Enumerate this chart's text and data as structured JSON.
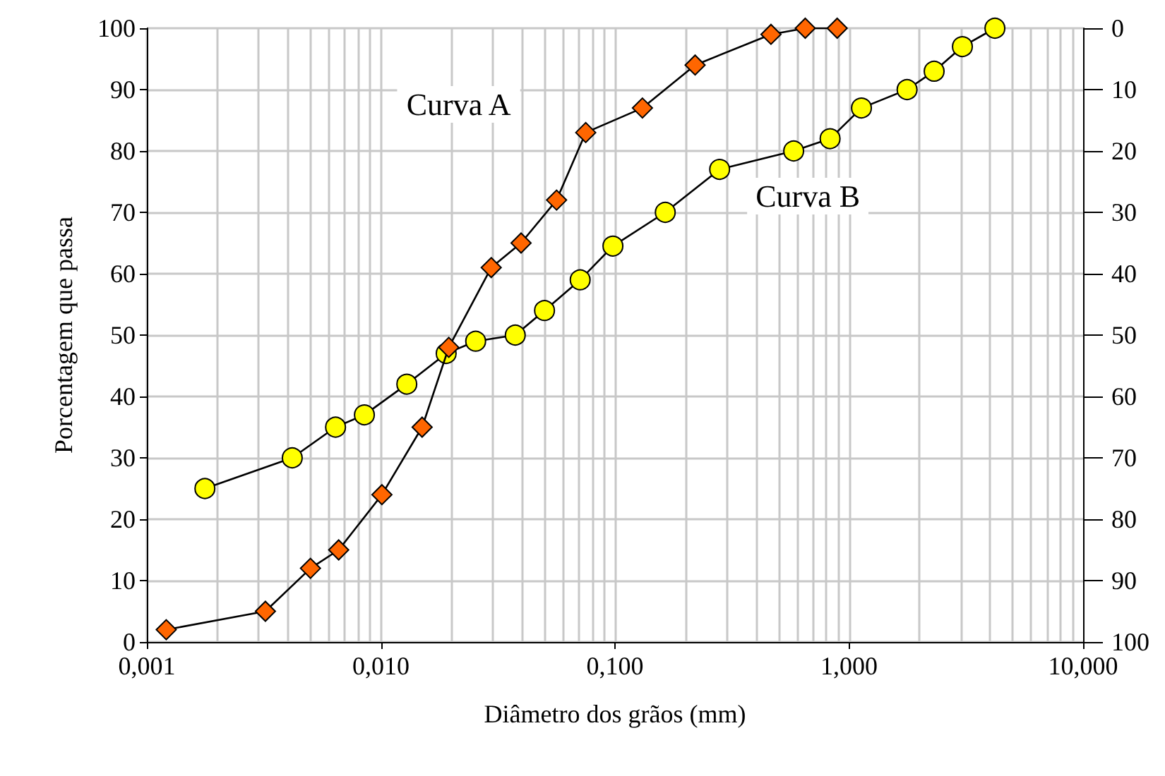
{
  "chart_data": {
    "type": "line",
    "xlabel": "Diâmetro dos grãos (mm)",
    "ylabel": "Porcentagem que passa",
    "log": "x",
    "grid": true,
    "line_style": "solid",
    "xlim": [
      0.001,
      10
    ],
    "xticks": [
      {
        "value": 0.001,
        "label": "0,001"
      },
      {
        "value": 0.01,
        "label": "0,010"
      },
      {
        "value": 0.1,
        "label": "0,100"
      },
      {
        "value": 1,
        "label": "1,000"
      },
      {
        "value": 10,
        "label": "10,000"
      }
    ],
    "ylim": [
      0,
      100
    ],
    "yticks": [
      0,
      10,
      20,
      30,
      40,
      50,
      60,
      70,
      80,
      90,
      100
    ],
    "y2lim": [
      100,
      0
    ],
    "y2ticks": [
      0,
      10,
      20,
      30,
      40,
      50,
      60,
      70,
      80,
      90,
      100
    ],
    "series": [
      {
        "name": "Curva A",
        "color": "#ff6600",
        "marker": "diamond",
        "x": [
          0.00121,
          0.00321,
          0.005,
          0.0066,
          0.0101,
          0.015,
          0.0195,
          0.0296,
          0.0397,
          0.0563,
          0.075,
          0.131,
          0.22,
          0.464,
          0.65,
          0.89
        ],
        "values": [
          2,
          5,
          12,
          15,
          24,
          35,
          48,
          61,
          65,
          72,
          83,
          87,
          94,
          99,
          100,
          100
        ]
      },
      {
        "name": "Curva B",
        "color": "#ffff00",
        "marker": "circle",
        "x": [
          0.00177,
          0.00418,
          0.0064,
          0.0085,
          0.0129,
          0.019,
          0.0254,
          0.0375,
          0.05,
          0.071,
          0.098,
          0.164,
          0.28,
          0.58,
          0.83,
          1.13,
          1.77,
          2.31,
          3.05,
          4.2
        ],
        "values": [
          25,
          30,
          35,
          37,
          42,
          47,
          49,
          50,
          54,
          59,
          64.5,
          70,
          77,
          80,
          82,
          87,
          90,
          93,
          97,
          100
        ]
      }
    ]
  }
}
